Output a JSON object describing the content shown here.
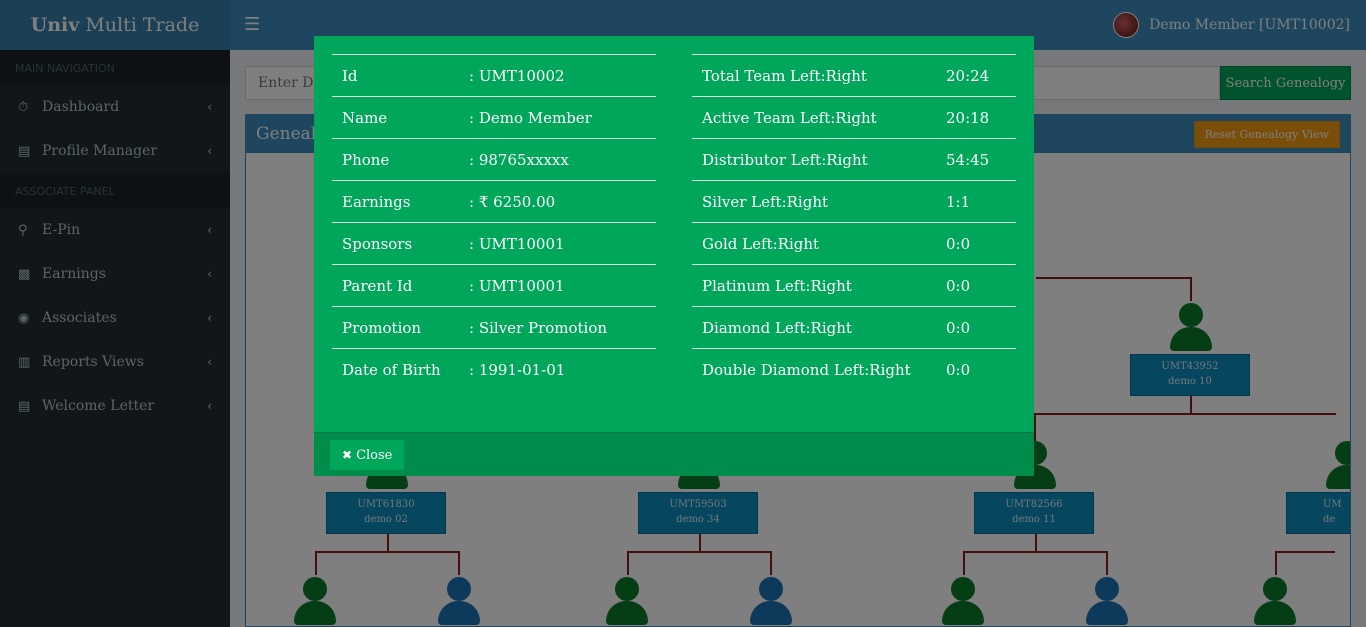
{
  "app": {
    "brand_bold": "Univ",
    "brand_rest": "Multi Trade",
    "menu_icon": "bars-icon",
    "user_name": "Demo Member [UMT10002]"
  },
  "sidebar": {
    "main_header": "MAIN NAVIGATION",
    "associate_header": "ASSOCIATE PANEL",
    "main_items": [
      {
        "label": "Dashboard",
        "icon": "dashboard-icon"
      },
      {
        "label": "Profile Manager",
        "icon": "id-card-icon"
      }
    ],
    "associate_items": [
      {
        "label": "E-Pin",
        "icon": "key-icon"
      },
      {
        "label": "Earnings",
        "icon": "money-icon"
      },
      {
        "label": "Associates",
        "icon": "users-icon"
      },
      {
        "label": "Reports Views",
        "icon": "bar-chart-icon"
      },
      {
        "label": "Welcome Letter",
        "icon": "newspaper-icon"
      }
    ]
  },
  "search": {
    "placeholder": "Enter Downline Id",
    "button_label": "Search Genealogy"
  },
  "genealogy": {
    "title": "Genealogy",
    "reset_label": "Reset Genealogy View",
    "nodes": [
      {
        "id": "UMT43952",
        "name": "demo 10"
      },
      {
        "id": "UMT61830",
        "name": "demo 02"
      },
      {
        "id": "UMT59503",
        "name": "demo 34"
      },
      {
        "id": "UMT82566",
        "name": "demo 11"
      },
      {
        "id": "UM",
        "name": "de"
      }
    ]
  },
  "modal": {
    "left": [
      {
        "key": "Id",
        "value": ": UMT10002"
      },
      {
        "key": "Name",
        "value": ": Demo Member"
      },
      {
        "key": "Phone",
        "value": ": 98765xxxxx"
      },
      {
        "key": "Earnings",
        "value": ": ₹ 6250.00"
      },
      {
        "key": "Sponsors",
        "value": ": UMT10001"
      },
      {
        "key": "Parent Id",
        "value": ": UMT10001"
      },
      {
        "key": "Promotion",
        "value": ": Silver Promotion"
      },
      {
        "key": "Date of Birth",
        "value": ": 1991-01-01"
      }
    ],
    "right": [
      {
        "key": "Total Team Left:Right",
        "value": "20:24"
      },
      {
        "key": "Active Team Left:Right",
        "value": "20:18"
      },
      {
        "key": "Distributor Left:Right",
        "value": "54:45"
      },
      {
        "key": "Silver Left:Right",
        "value": "1:1"
      },
      {
        "key": "Gold Left:Right",
        "value": "0:0"
      },
      {
        "key": "Platinum Left:Right",
        "value": "0:0"
      },
      {
        "key": "Diamond Left:Right",
        "value": "0:0"
      },
      {
        "key": "Double Diamond Left:Right",
        "value": "0:0"
      }
    ],
    "close_label": "Close"
  }
}
